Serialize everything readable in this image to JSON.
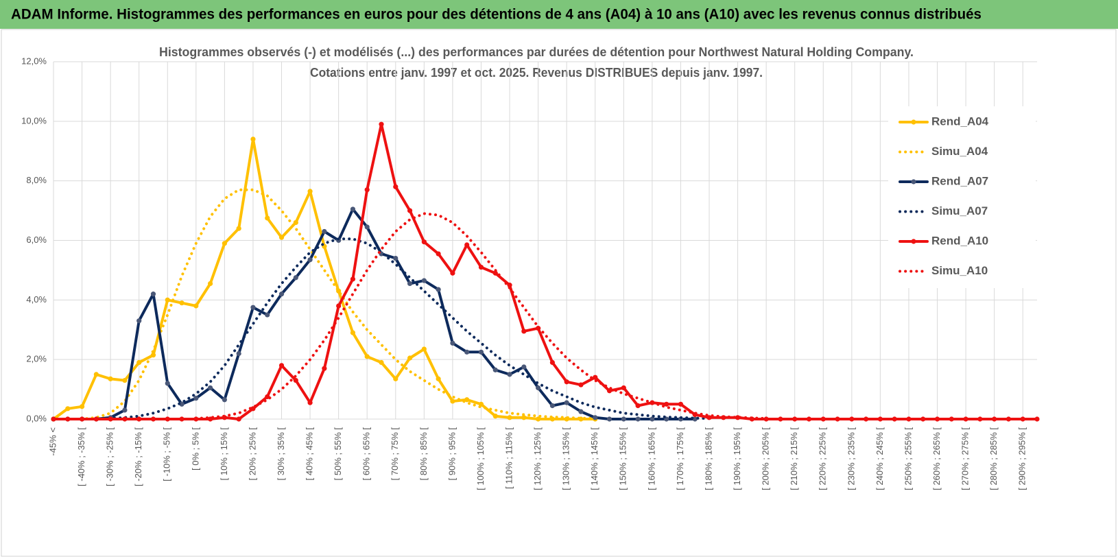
{
  "header": "ADAM Informe. Histogrammes des performances en euros pour des détentions de 4 ans (A04) à 10 ans (A10) avec les revenus connus distribués",
  "chart_data": {
    "type": "line",
    "title": [
      "Histogrammes observés (-) et modélisés (...) des performances par durées de détention pour Northwest Natural Holding Company.",
      "Cotations entre janv. 1997 et oct. 2025.  Revenus DISTRIBUES depuis janv. 1997."
    ],
    "categories": [
      "-45% <",
      null,
      "[ -40% ; -35% [",
      null,
      "[ -30% ; -25% [",
      null,
      "[ -20% ; -15% [",
      null,
      "[ -10% ; -5% [",
      null,
      "[ 0% ; 5% [",
      null,
      "[ 10% ; 15% [",
      null,
      "[ 20% ; 25% [",
      null,
      "[ 30% ; 35% [",
      null,
      "[ 40% ; 45% [",
      null,
      "[ 50% ; 55% [",
      null,
      "[ 60% ; 65% [",
      null,
      "[ 70% ; 75% [",
      null,
      "[ 80% ; 85% [",
      null,
      "[ 90% ; 95% [",
      null,
      "[ 100% ; 105% [",
      null,
      "[ 110% ; 115% [",
      null,
      "[ 120% ; 125% [",
      null,
      "[ 130% ; 135% [",
      null,
      "[ 140% ; 145% [",
      null,
      "[ 150% ; 155% [",
      null,
      "[ 160% ; 165% [",
      null,
      "[ 170% ; 175% [",
      null,
      "[ 180% ; 185% [",
      null,
      "[ 190% ; 195% [",
      null,
      "[ 200% ; 205% [",
      null,
      "[ 210% ; 215% [",
      null,
      "[ 220% ; 225% [",
      null,
      "[ 230% ; 235% [",
      null,
      "[ 240% ; 245% [",
      null,
      "[ 250% ; 255% [",
      null,
      "[ 260% ; 265% [",
      null,
      "[ 270% ; 275% [",
      null,
      "[ 280% ; 285% [",
      null,
      "[ 290% ; 295% [",
      null
    ],
    "ylim": [
      0,
      12
    ],
    "yticks": [
      {
        "value": 0,
        "label": "0,0%"
      },
      {
        "value": 2,
        "label": "2,0%"
      },
      {
        "value": 4,
        "label": "4,0%"
      },
      {
        "value": 6,
        "label": "6,0%"
      },
      {
        "value": 8,
        "label": "8,0%"
      },
      {
        "value": 10,
        "label": "10,0%"
      },
      {
        "value": 12,
        "label": "12,0%"
      }
    ],
    "grid": true,
    "legend": "right",
    "series": [
      {
        "name": "Rend_A04",
        "color": "#ffc000",
        "style": "solid",
        "markers": true,
        "values": [
          0,
          0.35,
          0.42,
          1.5,
          1.35,
          1.3,
          1.9,
          2.15,
          4.0,
          3.9,
          3.8,
          4.55,
          5.9,
          6.4,
          9.4,
          6.75,
          6.1,
          6.6,
          7.65,
          5.8,
          4.3,
          2.9,
          2.1,
          1.9,
          1.35,
          2.05,
          2.35,
          1.35,
          0.6,
          0.65,
          0.5,
          0.1,
          0.05,
          0.05,
          0,
          0,
          0,
          0,
          0,
          null,
          null,
          null,
          null,
          null,
          null,
          null,
          null,
          null,
          null,
          null,
          null,
          null,
          null,
          null,
          null,
          null,
          null,
          null,
          null,
          null,
          null,
          null,
          null,
          null,
          null,
          null,
          null,
          null,
          null,
          null
        ]
      },
      {
        "name": "Simu_A04",
        "color": "#ffc000",
        "style": "dotted",
        "markers": false,
        "values": [
          0,
          0,
          0,
          0.05,
          0.2,
          0.6,
          1.3,
          2.3,
          3.5,
          4.8,
          5.9,
          6.8,
          7.4,
          7.7,
          7.7,
          7.5,
          7.0,
          6.4,
          5.7,
          5.0,
          4.3,
          3.6,
          3.0,
          2.5,
          2.0,
          1.6,
          1.3,
          1.0,
          0.75,
          0.55,
          0.4,
          0.3,
          0.2,
          0.15,
          0.1,
          0.07,
          0.05,
          0.03,
          0.02,
          null,
          null,
          null,
          null,
          null,
          null,
          null,
          null,
          null,
          null,
          null,
          null,
          null,
          null,
          null,
          null,
          null,
          null,
          null,
          null,
          null,
          null,
          null,
          null,
          null,
          null,
          null,
          null,
          null,
          null,
          null
        ]
      },
      {
        "name": "Rend_A07",
        "color": "#0d2a5c",
        "style": "solid",
        "markers": true,
        "values": [
          0,
          0,
          0,
          0,
          0.05,
          0.3,
          3.3,
          4.2,
          1.2,
          0.5,
          0.7,
          1.05,
          0.65,
          2.2,
          3.75,
          3.5,
          4.2,
          4.75,
          5.35,
          6.3,
          6.0,
          7.05,
          6.45,
          5.55,
          5.4,
          4.55,
          4.65,
          4.35,
          2.55,
          2.25,
          2.25,
          1.65,
          1.5,
          1.75,
          1.05,
          0.45,
          0.55,
          0.25,
          0.05,
          0,
          0,
          0,
          0,
          0,
          0,
          0,
          null,
          null,
          null,
          null,
          null,
          null,
          null,
          null,
          null,
          null,
          null,
          null,
          null,
          null,
          null,
          null,
          null,
          null,
          null,
          null,
          null,
          null,
          null,
          null
        ]
      },
      {
        "name": "Simu_A07",
        "color": "#0d2a5c",
        "style": "dotted",
        "markers": false,
        "values": [
          0,
          0,
          0,
          0,
          0.02,
          0.05,
          0.1,
          0.2,
          0.35,
          0.55,
          0.85,
          1.25,
          1.8,
          2.5,
          3.2,
          3.9,
          4.55,
          5.1,
          5.6,
          5.9,
          6.05,
          6.05,
          5.9,
          5.6,
          5.2,
          4.75,
          4.3,
          3.85,
          3.4,
          2.95,
          2.55,
          2.15,
          1.8,
          1.5,
          1.2,
          0.95,
          0.75,
          0.55,
          0.4,
          0.3,
          0.2,
          0.15,
          0.1,
          0.07,
          0.05,
          0.03,
          0.02,
          null,
          null,
          null,
          null,
          null,
          null,
          null,
          null,
          null,
          null,
          null,
          null,
          null,
          null,
          null,
          null,
          null,
          null,
          null,
          null,
          null,
          null,
          null
        ]
      },
      {
        "name": "Rend_A10",
        "color": "#ee1111",
        "style": "solid",
        "markers": true,
        "values": [
          0,
          0,
          0,
          0,
          0,
          0,
          0,
          0,
          0,
          0,
          0,
          0,
          0.05,
          0,
          0.35,
          0.75,
          1.8,
          1.3,
          0.55,
          1.7,
          3.8,
          4.7,
          7.7,
          9.9,
          7.8,
          7.0,
          5.95,
          5.55,
          4.9,
          5.85,
          5.1,
          4.9,
          4.5,
          2.95,
          3.05,
          1.9,
          1.25,
          1.15,
          1.4,
          0.95,
          1.05,
          0.45,
          0.55,
          0.5,
          0.5,
          0.15,
          0.05,
          0.05,
          0.05,
          0,
          0,
          0,
          0,
          0,
          0,
          0,
          0,
          0,
          0,
          0,
          0,
          0,
          0,
          0,
          0,
          0,
          0,
          0,
          0,
          0
        ]
      },
      {
        "name": "Simu_A10",
        "color": "#ee1111",
        "style": "dotted",
        "markers": false,
        "values": [
          null,
          null,
          null,
          null,
          null,
          null,
          null,
          null,
          null,
          null,
          0.02,
          0.05,
          0.1,
          0.2,
          0.4,
          0.65,
          1.0,
          1.45,
          2.0,
          2.65,
          3.4,
          4.2,
          5.0,
          5.7,
          6.3,
          6.7,
          6.9,
          6.85,
          6.6,
          6.15,
          5.6,
          5.0,
          4.4,
          3.75,
          3.1,
          2.55,
          2.05,
          1.65,
          1.3,
          1.05,
          0.85,
          0.7,
          0.55,
          0.4,
          0.3,
          0.2,
          0.12,
          0.08,
          0.06,
          0.04,
          0.02,
          null,
          null,
          null,
          null,
          null,
          null,
          null,
          null,
          null,
          null,
          null,
          null,
          null,
          null,
          null,
          null,
          null,
          null,
          null
        ]
      }
    ]
  }
}
